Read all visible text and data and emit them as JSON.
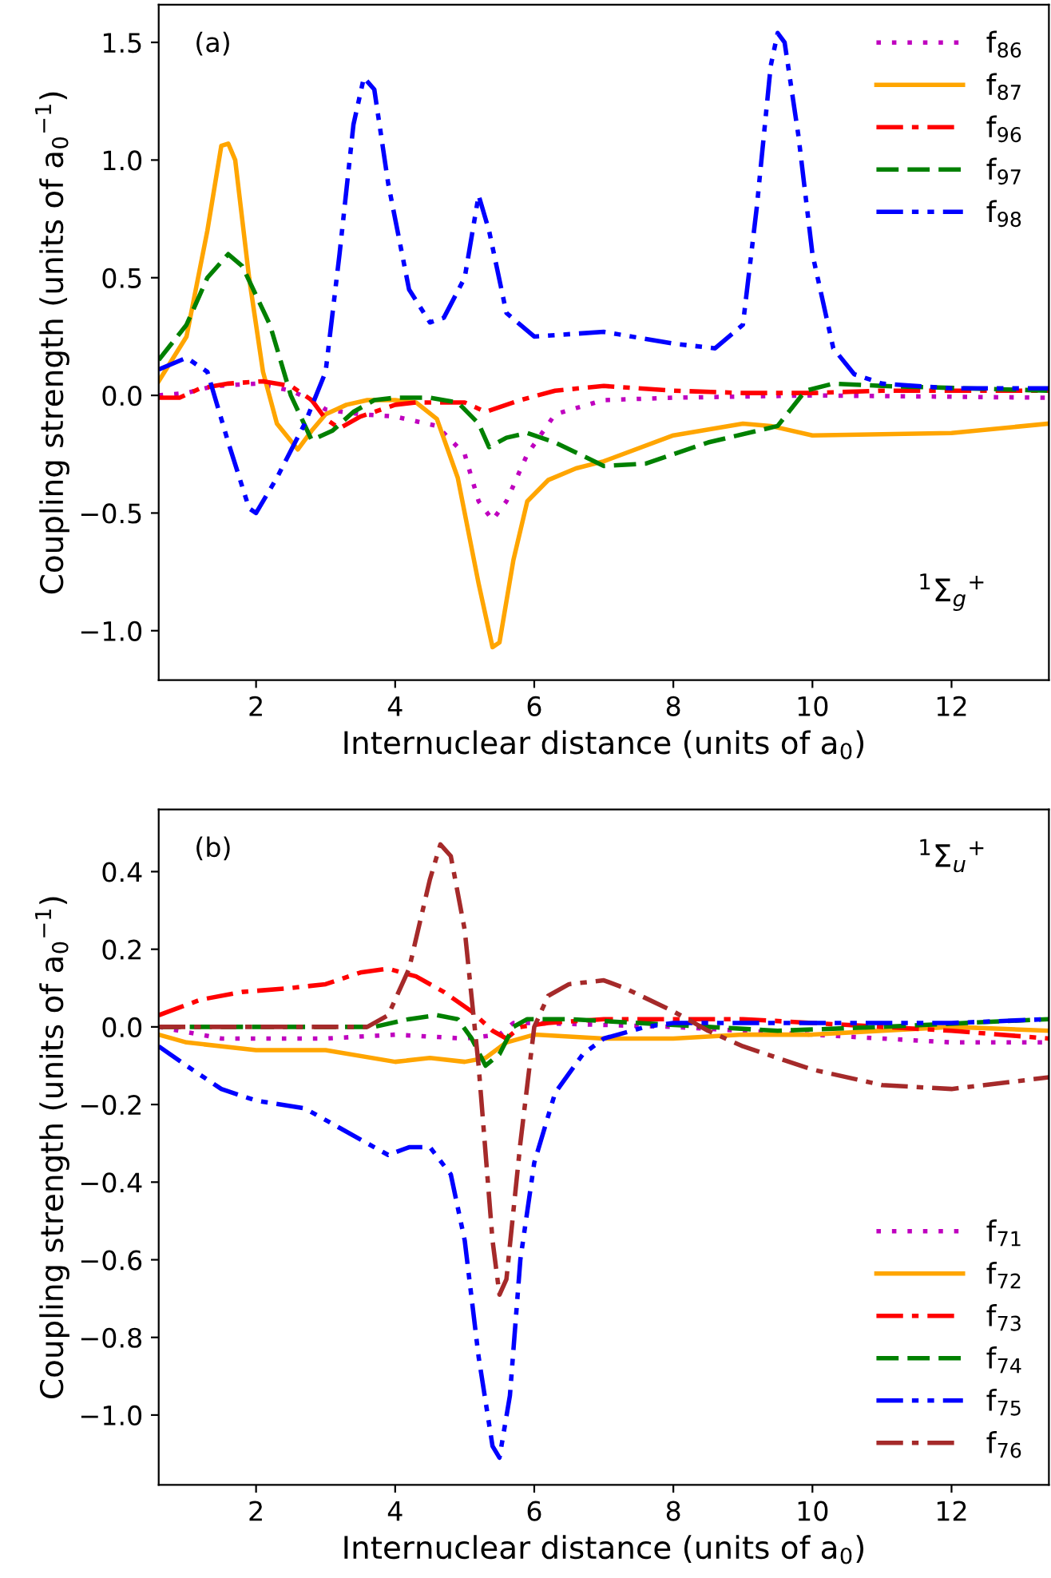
{
  "chart_data": [
    {
      "type": "line",
      "xlabel": "Internuclear distance (units of a$_{0}$)",
      "ylabel": "Coupling strength (units of a$_{0}$$^{−1}$)",
      "xlim": [
        0.6,
        13.4
      ],
      "ylim": [
        -1.21,
        1.66
      ],
      "xticks": [
        2,
        4,
        6,
        8,
        10,
        12
      ],
      "yticks": [
        {
          "value": -1.0,
          "label": "−1.0"
        },
        {
          "value": -0.5,
          "label": "−0.5"
        },
        {
          "value": 0.0,
          "label": "0.0"
        },
        {
          "value": 0.5,
          "label": "0.5"
        },
        {
          "value": 1.0,
          "label": "1.0"
        },
        {
          "value": 1.5,
          "label": "1.5"
        }
      ],
      "grid": false,
      "legend": "top right",
      "annotations": [
        "(a)",
        "$^{1}$Σ$_{g}$$^{+}$"
      ],
      "series": [
        {
          "name": "f$_{86}$",
          "color": "#bf00bf",
          "line_style": "dotted",
          "x": [
            0.6,
            1.0,
            1.4,
            2.0,
            2.5,
            2.8,
            3.0,
            3.5,
            4.0,
            4.6,
            5.0,
            5.2,
            5.4,
            5.6,
            5.9,
            6.3,
            7.0,
            8.0,
            10.0,
            13.4
          ],
          "values": [
            0.0,
            0.01,
            0.04,
            0.05,
            0.02,
            -0.02,
            -0.06,
            -0.08,
            -0.09,
            -0.13,
            -0.25,
            -0.45,
            -0.53,
            -0.45,
            -0.25,
            -0.08,
            -0.02,
            -0.01,
            0.0,
            -0.01
          ]
        },
        {
          "name": "f$_{87}$",
          "color": "#ffa500",
          "line_style": "solid",
          "x": [
            0.6,
            1.0,
            1.3,
            1.5,
            1.6,
            1.7,
            1.9,
            2.1,
            2.3,
            2.6,
            2.8,
            3.0,
            3.3,
            3.6,
            4.0,
            4.3,
            4.6,
            4.9,
            5.2,
            5.4,
            5.5,
            5.7,
            5.9,
            6.2,
            6.6,
            7.0,
            8.0,
            9.0,
            9.4,
            10.0,
            12.0,
            13.4
          ],
          "values": [
            0.06,
            0.25,
            0.7,
            1.06,
            1.07,
            1.0,
            0.5,
            0.1,
            -0.12,
            -0.23,
            -0.15,
            -0.08,
            -0.04,
            -0.02,
            -0.02,
            -0.03,
            -0.1,
            -0.35,
            -0.8,
            -1.07,
            -1.05,
            -0.7,
            -0.45,
            -0.36,
            -0.31,
            -0.28,
            -0.17,
            -0.12,
            -0.13,
            -0.17,
            -0.16,
            -0.12
          ]
        },
        {
          "name": "f$_{96}$",
          "color": "#ff0000",
          "line_style": "dashdot",
          "x": [
            0.6,
            0.9,
            1.2,
            1.6,
            2.1,
            2.5,
            2.8,
            3.0,
            3.2,
            3.5,
            4.0,
            4.3,
            5.0,
            5.3,
            5.8,
            6.3,
            7.0,
            8.0,
            9.0,
            10.0,
            11.0,
            13.4
          ],
          "values": [
            -0.01,
            -0.01,
            0.03,
            0.05,
            0.06,
            0.04,
            -0.02,
            -0.1,
            -0.14,
            -0.09,
            -0.04,
            -0.03,
            -0.03,
            -0.07,
            -0.02,
            0.02,
            0.04,
            0.02,
            0.01,
            0.01,
            0.02,
            0.02
          ]
        },
        {
          "name": "f$_{97}$",
          "color": "#008000",
          "line_style": "dashed",
          "x": [
            0.6,
            1.0,
            1.3,
            1.6,
            1.8,
            2.2,
            2.5,
            2.8,
            3.1,
            3.4,
            3.7,
            4.0,
            4.5,
            4.9,
            5.2,
            5.35,
            5.6,
            5.9,
            6.3,
            7.0,
            7.6,
            8.5,
            9.5,
            9.9,
            10.3,
            11.0,
            13.4
          ],
          "values": [
            0.15,
            0.3,
            0.5,
            0.6,
            0.55,
            0.3,
            0.0,
            -0.19,
            -0.15,
            -0.07,
            -0.02,
            -0.01,
            -0.01,
            -0.03,
            -0.12,
            -0.22,
            -0.18,
            -0.16,
            -0.2,
            -0.3,
            -0.29,
            -0.2,
            -0.13,
            0.02,
            0.05,
            0.04,
            0.02
          ]
        },
        {
          "name": "f$_{98}$",
          "color": "#0000ff",
          "line_style": "dashdotdot",
          "x": [
            0.6,
            1.0,
            1.3,
            1.6,
            1.9,
            2.0,
            2.3,
            2.7,
            3.0,
            3.2,
            3.4,
            3.55,
            3.7,
            3.9,
            4.2,
            4.5,
            4.7,
            5.0,
            5.2,
            5.35,
            5.6,
            6.0,
            7.0,
            8.0,
            8.6,
            9.0,
            9.2,
            9.4,
            9.5,
            9.6,
            9.8,
            10.0,
            10.3,
            10.6,
            11.0,
            12.0,
            13.4
          ],
          "values": [
            0.11,
            0.16,
            0.1,
            -0.2,
            -0.48,
            -0.5,
            -0.35,
            -0.12,
            0.1,
            0.6,
            1.15,
            1.35,
            1.3,
            0.9,
            0.45,
            0.31,
            0.33,
            0.5,
            0.85,
            0.7,
            0.35,
            0.25,
            0.27,
            0.22,
            0.2,
            0.3,
            0.8,
            1.4,
            1.54,
            1.5,
            1.1,
            0.6,
            0.2,
            0.09,
            0.05,
            0.03,
            0.03
          ]
        }
      ]
    },
    {
      "type": "line",
      "xlabel": "Internuclear distance (units of a$_{0}$)",
      "ylabel": "Coupling strength (units of a$_{0}$$^{−1}$)",
      "xlim": [
        0.6,
        13.4
      ],
      "ylim": [
        -1.18,
        0.56
      ],
      "xticks": [
        2,
        4,
        6,
        8,
        10,
        12
      ],
      "yticks": [
        {
          "value": -1.0,
          "label": "−1.0"
        },
        {
          "value": -0.8,
          "label": "−0.8"
        },
        {
          "value": -0.6,
          "label": "−0.6"
        },
        {
          "value": -0.4,
          "label": "−0.4"
        },
        {
          "value": -0.2,
          "label": "−0.2"
        },
        {
          "value": 0.0,
          "label": "0.0"
        },
        {
          "value": 0.2,
          "label": "0.2"
        },
        {
          "value": 0.4,
          "label": "0.4"
        }
      ],
      "grid": false,
      "legend": "bottom right",
      "annotations": [
        "(b)",
        "$^{1}$Σ$_{u}$$^{+}$"
      ],
      "series": [
        {
          "name": "f$_{71}$",
          "color": "#bf00bf",
          "line_style": "dotted",
          "x": [
            0.6,
            1.5,
            3.0,
            4.0,
            5.0,
            5.5,
            5.7,
            6.0,
            8.0,
            9.0,
            10.0,
            11.0,
            12.0,
            13.4
          ],
          "values": [
            0.0,
            -0.03,
            -0.03,
            -0.02,
            -0.03,
            -0.02,
            0.01,
            0.01,
            0.0,
            -0.01,
            -0.02,
            -0.03,
            -0.04,
            -0.04
          ]
        },
        {
          "name": "f$_{72}$",
          "color": "#ffa500",
          "line_style": "solid",
          "x": [
            0.6,
            1.0,
            2.0,
            3.0,
            4.0,
            4.5,
            5.0,
            5.3,
            5.6,
            6.0,
            7.0,
            8.0,
            9.0,
            10.0,
            12.0,
            13.4
          ],
          "values": [
            -0.02,
            -0.04,
            -0.06,
            -0.06,
            -0.09,
            -0.08,
            -0.09,
            -0.08,
            -0.04,
            -0.02,
            -0.03,
            -0.03,
            -0.02,
            -0.02,
            0.0,
            -0.01
          ]
        },
        {
          "name": "f$_{73}$",
          "color": "#ff0000",
          "line_style": "dashdot",
          "x": [
            0.6,
            1.2,
            1.8,
            2.5,
            3.0,
            3.5,
            3.9,
            4.3,
            4.7,
            5.1,
            5.4,
            5.6,
            5.8,
            6.2,
            7.0,
            8.0,
            9.0,
            10.0,
            11.0,
            12.0,
            13.4
          ],
          "values": [
            0.03,
            0.07,
            0.09,
            0.1,
            0.11,
            0.14,
            0.15,
            0.13,
            0.09,
            0.04,
            -0.01,
            -0.03,
            0.0,
            0.01,
            0.02,
            0.02,
            0.02,
            0.01,
            0.0,
            -0.01,
            -0.03
          ]
        },
        {
          "name": "f$_{74}$",
          "color": "#008000",
          "line_style": "dashed",
          "x": [
            0.6,
            3.0,
            3.7,
            4.2,
            4.6,
            4.9,
            5.1,
            5.3,
            5.5,
            5.7,
            5.9,
            6.5,
            7.5,
            8.5,
            9.5,
            11.0,
            13.4
          ],
          "values": [
            0.0,
            0.0,
            0.0,
            0.02,
            0.03,
            0.02,
            -0.03,
            -0.1,
            -0.07,
            0.0,
            0.02,
            0.02,
            0.01,
            0.0,
            -0.01,
            0.0,
            0.02
          ]
        },
        {
          "name": "f$_{75}$",
          "color": "#0000ff",
          "line_style": "dashdotdot",
          "x": [
            0.6,
            1.0,
            1.5,
            2.0,
            2.7,
            3.2,
            3.9,
            4.2,
            4.5,
            4.8,
            5.0,
            5.2,
            5.4,
            5.5,
            5.65,
            5.8,
            6.0,
            6.3,
            6.7,
            7.0,
            7.6,
            8.0,
            9.0,
            10.0,
            12.0,
            13.4
          ],
          "values": [
            -0.05,
            -0.1,
            -0.16,
            -0.19,
            -0.21,
            -0.26,
            -0.33,
            -0.31,
            -0.31,
            -0.38,
            -0.55,
            -0.85,
            -1.08,
            -1.11,
            -0.95,
            -0.6,
            -0.35,
            -0.17,
            -0.07,
            -0.03,
            0.0,
            0.01,
            0.01,
            0.01,
            0.01,
            0.02
          ]
        },
        {
          "name": "f$_{76}$",
          "color": "#a52a2a",
          "line_style": "dashdot",
          "x": [
            0.6,
            3.0,
            3.6,
            3.9,
            4.2,
            4.5,
            4.65,
            4.8,
            5.0,
            5.2,
            5.4,
            5.5,
            5.6,
            5.8,
            6.0,
            6.2,
            6.5,
            7.0,
            7.3,
            8.0,
            8.5,
            9.0,
            10.0,
            11.0,
            12.0,
            13.4
          ],
          "values": [
            0.0,
            0.0,
            0.0,
            0.03,
            0.15,
            0.38,
            0.47,
            0.44,
            0.25,
            -0.1,
            -0.55,
            -0.69,
            -0.65,
            -0.3,
            0.0,
            0.08,
            0.11,
            0.12,
            0.1,
            0.04,
            -0.01,
            -0.05,
            -0.11,
            -0.15,
            -0.16,
            -0.13
          ]
        }
      ]
    }
  ]
}
